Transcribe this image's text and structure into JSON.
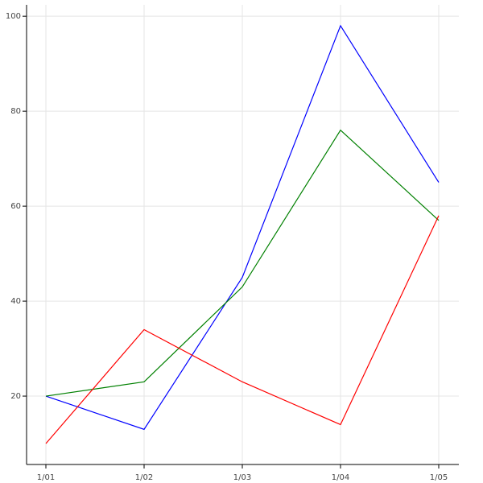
{
  "chart_data": {
    "type": "line",
    "categories": [
      "1/01",
      "1/02",
      "1/03",
      "1/04",
      "1/05"
    ],
    "series": [
      {
        "color": "#0000ff",
        "values": [
          20,
          13,
          45,
          98,
          65
        ]
      },
      {
        "color": "#008000",
        "values": [
          20,
          23,
          43,
          76,
          57
        ]
      },
      {
        "color": "#ff0000",
        "values": [
          10,
          34,
          23,
          14,
          58
        ]
      }
    ],
    "ylim": [
      5.6,
      102.4
    ],
    "yticks": [
      20,
      40,
      60,
      80,
      100
    ],
    "grid": true
  }
}
